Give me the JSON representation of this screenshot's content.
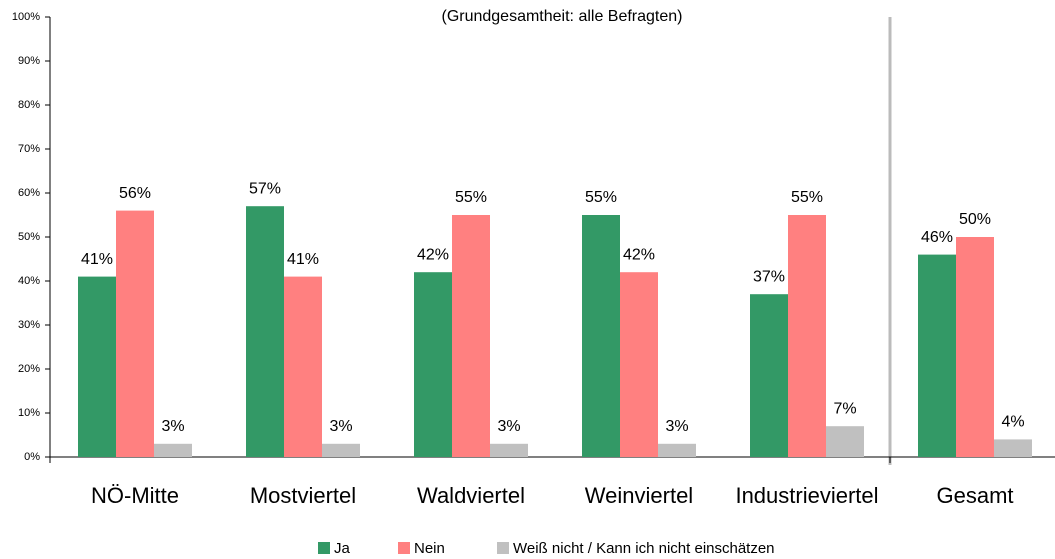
{
  "chart_data": {
    "type": "bar",
    "subtitle": "(Grundgesamtheit: alle Befragten)",
    "categories": [
      "NÖ-Mitte",
      "Mostviertel",
      "Waldviertel",
      "Weinviertel",
      "Industrieviertel",
      "Gesamt"
    ],
    "series": [
      {
        "name": "Ja",
        "color": "#339966",
        "values": [
          41,
          57,
          42,
          55,
          37,
          46
        ],
        "value_labels": [
          "41%",
          "57%",
          "42%",
          "55%",
          "37%",
          "46%"
        ]
      },
      {
        "name": "Nein",
        "color": "#ff8080",
        "values": [
          56,
          41,
          55,
          42,
          55,
          50
        ],
        "value_labels": [
          "56%",
          "41%",
          "55%",
          "42%",
          "55%",
          "50%"
        ]
      },
      {
        "name": "Weiß nicht / Kann ich nicht einschätzen",
        "color": "#c0c0c0",
        "values": [
          3,
          3,
          3,
          3,
          7,
          4
        ],
        "value_labels": [
          "3%",
          "3%",
          "3%",
          "3%",
          "7%",
          "4%"
        ]
      }
    ],
    "ylim": [
      0,
      100
    ],
    "yticks": [
      {
        "value": 0,
        "label": "0%"
      },
      {
        "value": 10,
        "label": "10%"
      },
      {
        "value": 20,
        "label": "20%"
      },
      {
        "value": 30,
        "label": "30%"
      },
      {
        "value": 40,
        "label": "40%"
      },
      {
        "value": 50,
        "label": "50%"
      },
      {
        "value": 60,
        "label": "60%"
      },
      {
        "value": 70,
        "label": "70%"
      },
      {
        "value": 80,
        "label": "80%"
      },
      {
        "value": 90,
        "label": "90%"
      },
      {
        "value": 100,
        "label": "100%"
      }
    ],
    "legend": "bottom"
  }
}
